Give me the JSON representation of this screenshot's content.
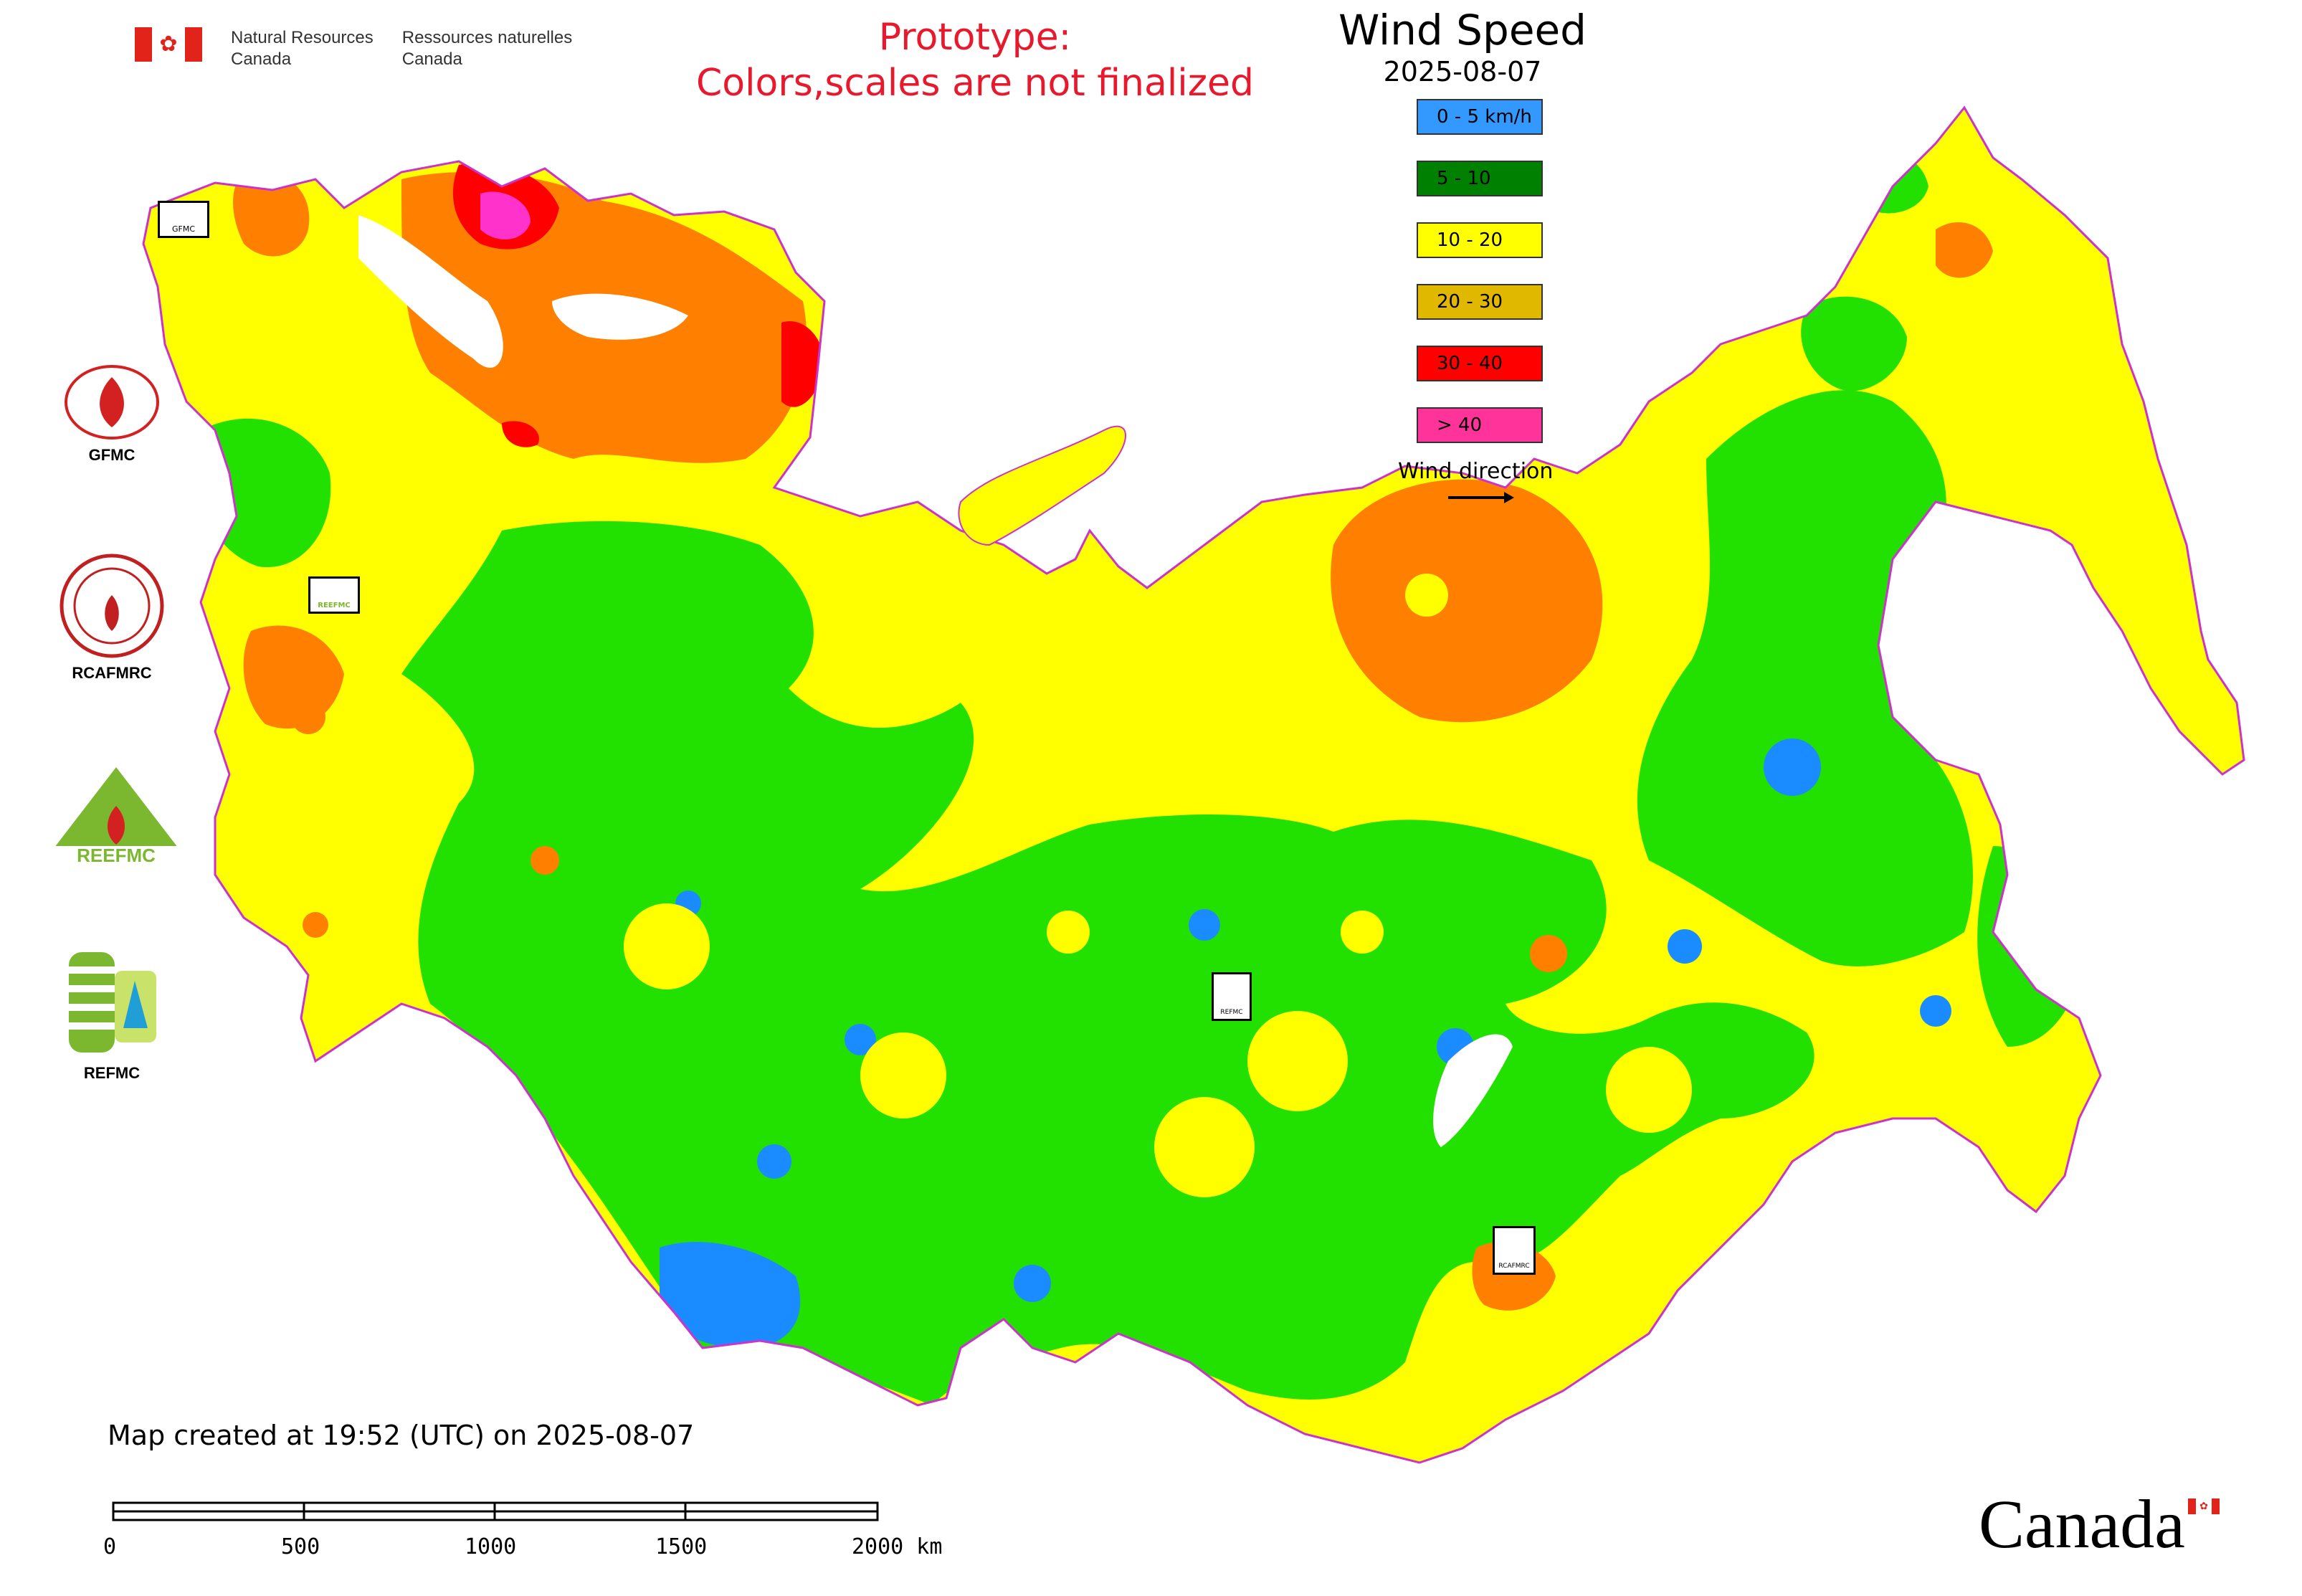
{
  "header": {
    "department_en": [
      "Natural Resources",
      "Canada"
    ],
    "department_fr": [
      "Ressources naturelles",
      "Canada"
    ],
    "prototype_line1": "Prototype:",
    "prototype_line2": "Colors,scales are not finalized"
  },
  "legend": {
    "title": "Wind Speed",
    "date": "2025-08-07",
    "classes": [
      {
        "label": "0 - 5 km/h",
        "color": "#3399ff"
      },
      {
        "label": "5 - 10",
        "color": "#008000"
      },
      {
        "label": "10 - 20",
        "color": "#ffff00"
      },
      {
        "label": "20 - 30",
        "color": "#e0b800"
      },
      {
        "label": "30 - 40",
        "color": "#ff0000"
      },
      {
        "label": "> 40",
        "color": "#ff3399"
      }
    ],
    "wind_direction_label": "Wind direction"
  },
  "side_logos": [
    {
      "label": "GFMC",
      "icon": "gfmc-logo-icon"
    },
    {
      "label": "RCAFMRC",
      "icon": "rcafmrc-logo-icon"
    },
    {
      "label": "",
      "icon": "reefmc-logo-icon",
      "logo_text": "REEFMC"
    },
    {
      "label": "REFMC",
      "icon": "refmc-logo-icon"
    }
  ],
  "map_labels": {
    "gfmc": "GFMC",
    "rcafmrc": "RCAFMRC",
    "refmc": "REFMC",
    "reefmc": "REEFMC"
  },
  "map_colors": {
    "green": "#22e000",
    "yellow": "#ffff00",
    "orange": "#ff8000",
    "red": "#ff0000",
    "magenta": "#ff33cc",
    "blue": "#1a8cff",
    "border": "#cc33cc"
  },
  "footer": {
    "created": "Map created at 19:52 (UTC) on 2025-08-07",
    "scale_ticks": [
      "0",
      "500",
      "1000",
      "1500",
      "2000 km"
    ],
    "wordmark": "Canada"
  }
}
